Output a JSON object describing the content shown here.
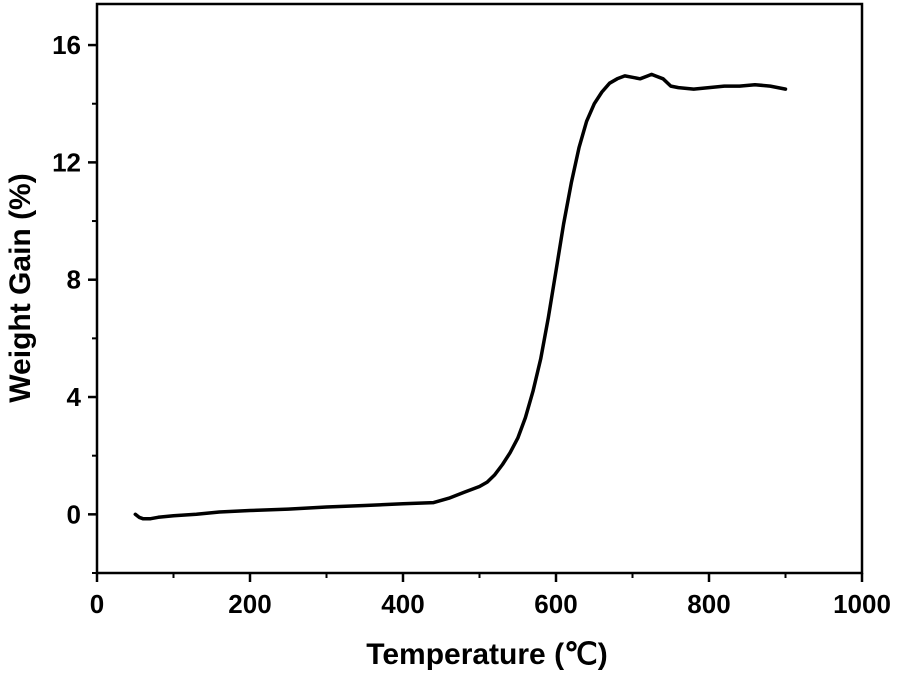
{
  "chart_data": {
    "type": "line",
    "title": "",
    "xlabel": "Temperature (℃)",
    "ylabel": "Weight Gain (%)",
    "xlim": [
      0,
      1000
    ],
    "ylim": [
      -2,
      17.4
    ],
    "x_ticks": [
      0,
      200,
      400,
      600,
      800,
      1000
    ],
    "x_tick_labels": [
      "0",
      "200",
      "400",
      "600",
      "800",
      "1000"
    ],
    "y_ticks": [
      0,
      4,
      8,
      12,
      16
    ],
    "y_tick_labels": [
      "0",
      "4",
      "8",
      "12",
      "16"
    ],
    "grid": false,
    "legend": "none",
    "line_color": "#000000",
    "series": [
      {
        "x": [
          50,
          55,
          60,
          70,
          80,
          100,
          130,
          160,
          200,
          250,
          300,
          350,
          400,
          440,
          460,
          480,
          500,
          510,
          520,
          530,
          540,
          550,
          560,
          570,
          580,
          590,
          600,
          610,
          620,
          630,
          640,
          650,
          660,
          670,
          680,
          690,
          700,
          710,
          720,
          725,
          730,
          740,
          750,
          760,
          780,
          800,
          820,
          840,
          860,
          880,
          900
        ],
        "y": [
          0.0,
          -0.1,
          -0.15,
          -0.15,
          -0.1,
          -0.05,
          0.0,
          0.08,
          0.13,
          0.18,
          0.25,
          0.3,
          0.36,
          0.4,
          0.55,
          0.75,
          0.95,
          1.1,
          1.35,
          1.7,
          2.1,
          2.6,
          3.3,
          4.2,
          5.3,
          6.7,
          8.3,
          9.9,
          11.3,
          12.5,
          13.4,
          14.0,
          14.4,
          14.7,
          14.85,
          14.95,
          14.9,
          14.85,
          14.95,
          15.0,
          14.95,
          14.85,
          14.6,
          14.55,
          14.5,
          14.55,
          14.6,
          14.6,
          14.65,
          14.6,
          14.5
        ]
      }
    ]
  }
}
